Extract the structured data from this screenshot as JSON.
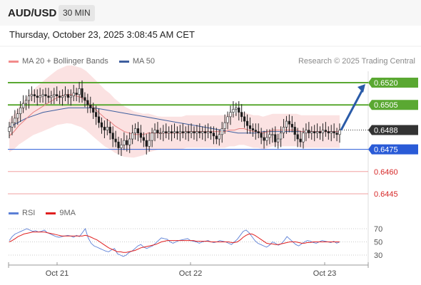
{
  "header": {
    "symbol": "AUD/USD",
    "timeframe": "30 MIN",
    "datetime": "Thursday, October 23, 2025 3:08:45 AM CET"
  },
  "legend": {
    "price": [
      {
        "name": "MA 20 + Bollinger Bands",
        "color": "#f28b8b"
      },
      {
        "name": "MA 50",
        "color": "#3f5f9f"
      }
    ],
    "rsi": [
      {
        "name": "RSI",
        "color": "#5b7fd6"
      },
      {
        "name": "9MA",
        "color": "#e02020"
      }
    ],
    "credit": "Research © 2025 Trading Central"
  },
  "chart_data": [
    {
      "type": "candlestick",
      "x_ticks": [
        "Oct 21",
        "Oct 22",
        "Oct 23"
      ],
      "last_price": 0.6488,
      "levels": [
        {
          "value": 0.652,
          "label": "0.6520",
          "kind": "resistance",
          "color": "#5aa832"
        },
        {
          "value": 0.6505,
          "label": "0.6505",
          "kind": "resistance",
          "color": "#5aa832"
        },
        {
          "value": 0.6488,
          "label": "0.6488",
          "kind": "last",
          "color": "#333333"
        },
        {
          "value": 0.6475,
          "label": "0.6475",
          "kind": "pivot",
          "color": "#2a5bd7"
        },
        {
          "value": 0.646,
          "label": "0.6460",
          "kind": "support",
          "color": "#d62828"
        },
        {
          "value": 0.6445,
          "label": "0.6445",
          "kind": "support",
          "color": "#d62828"
        }
      ],
      "projection": {
        "from": 0.6488,
        "to": 0.652,
        "color": "#2a5ba8"
      },
      "close": [
        0.649,
        0.6493,
        0.6496,
        0.6499,
        0.6503,
        0.6506,
        0.6508,
        0.6511,
        0.6512,
        0.6511,
        0.651,
        0.6511,
        0.6512,
        0.6511,
        0.651,
        0.6511,
        0.6512,
        0.6511,
        0.651,
        0.6511,
        0.6512,
        0.651,
        0.6511,
        0.6513,
        0.6512,
        0.6516,
        0.651,
        0.6508,
        0.6505,
        0.6503,
        0.65,
        0.6497,
        0.6493,
        0.649,
        0.6488,
        0.649,
        0.6486,
        0.6482,
        0.648,
        0.6476,
        0.6478,
        0.6481,
        0.6478,
        0.6482,
        0.6486,
        0.6489,
        0.6486,
        0.6483,
        0.6481,
        0.6477,
        0.6481,
        0.6486,
        0.6488,
        0.6486,
        0.6486,
        0.6487,
        0.6486,
        0.6487,
        0.6486,
        0.6487,
        0.6486,
        0.6487,
        0.6486,
        0.6487,
        0.6486,
        0.6487,
        0.6486,
        0.6487,
        0.6486,
        0.6487,
        0.6486,
        0.6487,
        0.6486,
        0.6484,
        0.6482,
        0.6485,
        0.6489,
        0.6493,
        0.6497,
        0.65,
        0.6502,
        0.6503,
        0.65,
        0.6497,
        0.6494,
        0.6491,
        0.6489,
        0.6488,
        0.6487,
        0.6486,
        0.6483,
        0.6481,
        0.6483,
        0.6485,
        0.6485,
        0.648,
        0.6482,
        0.6486,
        0.649,
        0.6494,
        0.6492,
        0.649,
        0.6485,
        0.6482,
        0.648,
        0.6486,
        0.6488,
        0.6486,
        0.6487,
        0.6486,
        0.6487,
        0.6486,
        0.6488,
        0.6487,
        0.6486,
        0.6487,
        0.6486,
        0.6485,
        0.6488
      ],
      "ma20": [
        0.6484,
        0.6487,
        0.6491,
        0.6494,
        0.6497,
        0.65,
        0.6502,
        0.6504,
        0.6506,
        0.6508,
        0.651,
        0.6511,
        0.6512,
        0.6512,
        0.6511,
        0.651,
        0.6508,
        0.6505,
        0.6502,
        0.6499,
        0.6496,
        0.6494,
        0.6491,
        0.6489,
        0.6487,
        0.6486,
        0.6485,
        0.6485,
        0.6485,
        0.6486,
        0.6486,
        0.6486,
        0.6486,
        0.6486,
        0.6486,
        0.6486,
        0.6486,
        0.6487,
        0.6487,
        0.6487,
        0.6487,
        0.6487,
        0.6487,
        0.6487,
        0.6487,
        0.6487,
        0.6488,
        0.6488,
        0.6489,
        0.6489,
        0.6488,
        0.6487,
        0.6487,
        0.6486,
        0.6487,
        0.6488,
        0.6488,
        0.6488,
        0.6488,
        0.6488,
        0.6488,
        0.6487,
        0.6487,
        0.6487,
        0.6487,
        0.6487,
        0.6487,
        0.6487,
        0.6487,
        0.6487
      ],
      "ma50": [
        0.649,
        0.6493,
        0.6496,
        0.6498,
        0.65,
        0.6501,
        0.6502,
        0.6503,
        0.6503,
        0.6503,
        0.6503,
        0.6502,
        0.6501,
        0.65,
        0.6499,
        0.6498,
        0.6497,
        0.6496,
        0.6495,
        0.6494,
        0.6493,
        0.6492,
        0.6491,
        0.649,
        0.6489,
        0.6488,
        0.6487,
        0.6486,
        0.6486,
        0.6486,
        0.6487,
        0.6487,
        0.6487,
        0.6487,
        0.6487,
        0.6487,
        0.6487,
        0.6487,
        0.6487,
        0.6487
      ]
    },
    {
      "type": "line",
      "ylim": [
        25,
        75
      ],
      "y_ticks": [
        70,
        50,
        30
      ],
      "rsi": [
        52,
        58,
        62,
        64,
        66,
        68,
        70,
        68,
        66,
        67,
        65,
        66,
        68,
        64,
        62,
        60,
        58,
        57,
        58,
        59,
        60,
        59,
        57,
        60,
        58,
        64,
        70,
        56,
        48,
        44,
        42,
        40,
        38,
        36,
        35,
        38,
        40,
        32,
        30,
        28,
        30,
        34,
        36,
        40,
        44,
        46,
        42,
        40,
        42,
        44,
        48,
        52,
        56,
        55,
        54,
        50,
        48,
        50,
        52,
        53,
        54,
        55,
        52,
        51,
        50,
        48,
        50,
        51,
        52,
        50,
        49,
        50,
        52,
        51,
        50,
        48,
        46,
        50,
        54,
        60,
        66,
        68,
        64,
        58,
        52,
        48,
        46,
        44,
        42,
        45,
        50,
        48,
        45,
        47,
        52,
        58,
        54,
        50,
        46,
        44,
        47,
        50,
        52,
        51,
        49,
        48,
        50,
        52,
        51,
        50,
        49,
        51,
        48,
        50
      ],
      "ma9": [
        50,
        52,
        55,
        58,
        60,
        62,
        63,
        64,
        65,
        65,
        65,
        65,
        65,
        64,
        63,
        62,
        61,
        60,
        59,
        59,
        59,
        59,
        59,
        59,
        59,
        59,
        60,
        59,
        57,
        55,
        53,
        50,
        47,
        44,
        41,
        39,
        37,
        35,
        35,
        34,
        34,
        35,
        36,
        37,
        39,
        41,
        42,
        43,
        44,
        45,
        46,
        48,
        50,
        51,
        52,
        52,
        52,
        52,
        52,
        52,
        52,
        52,
        52,
        52,
        51,
        51,
        51,
        51,
        51,
        50,
        50,
        50,
        50,
        50,
        50,
        50,
        49,
        49,
        50,
        53,
        57,
        60,
        62,
        62,
        60,
        57,
        54,
        51,
        48,
        47,
        47,
        46,
        46,
        47,
        48,
        49,
        50,
        50,
        50,
        49,
        48,
        48,
        49,
        49,
        50,
        50,
        50,
        50,
        50,
        50,
        50,
        50,
        50,
        50
      ]
    }
  ]
}
